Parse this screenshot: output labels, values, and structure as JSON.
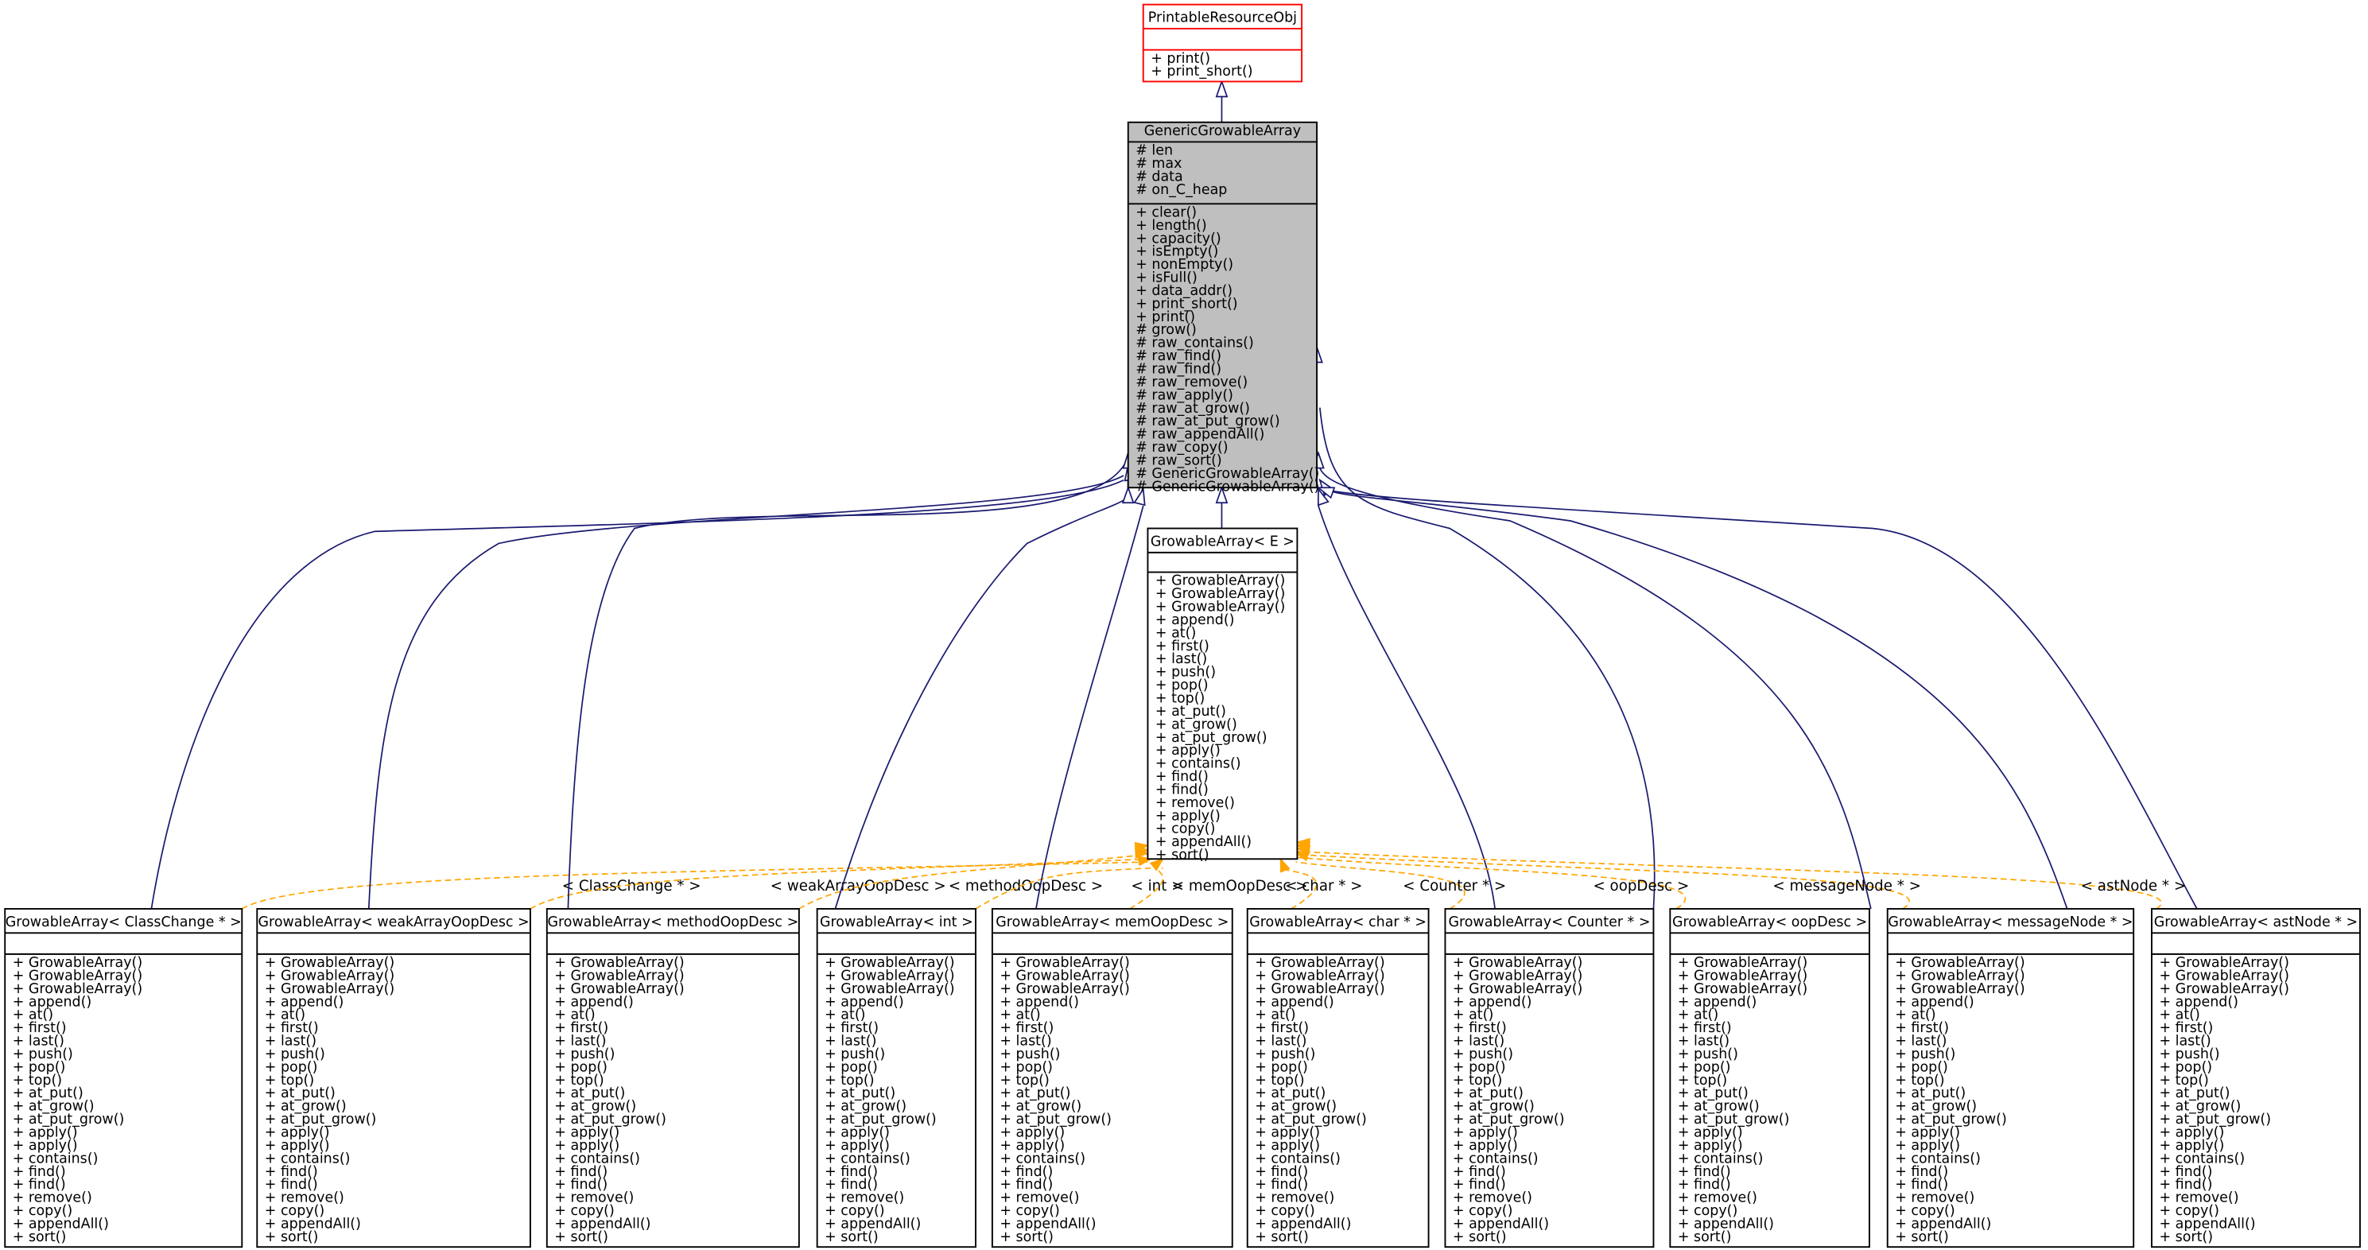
{
  "colors": {
    "inheritance_edge": "#191970",
    "template_edge": "#FFA500",
    "root_border": "#FF0000",
    "focus_fill": "#BFBFBF",
    "box_border": "#000000"
  },
  "classes": {
    "printable": {
      "title": "PrintableResourceObj",
      "attributes": [],
      "methods": [
        "+ print()",
        "+ print_short()"
      ]
    },
    "generic": {
      "title": "GenericGrowableArray",
      "attributes": [
        "# len",
        "# max",
        "# data",
        "# on_C_heap"
      ],
      "methods": [
        "+ clear()",
        "+ length()",
        "+ capacity()",
        "+ isEmpty()",
        "+ nonEmpty()",
        "+ isFull()",
        "+ data_addr()",
        "+ print_short()",
        "+ print()",
        "# grow()",
        "# raw_contains()",
        "# raw_find()",
        "# raw_find()",
        "# raw_remove()",
        "# raw_apply()",
        "# raw_at_grow()",
        "# raw_at_put_grow()",
        "# raw_appendAll()",
        "# raw_copy()",
        "# raw_sort()",
        "# GenericGrowableArray()",
        "# GenericGrowableArray()"
      ]
    },
    "template": {
      "title": "GrowableArray< E >",
      "attributes": [],
      "methods": [
        "+ GrowableArray()",
        "+ GrowableArray()",
        "+ GrowableArray()",
        "+ append()",
        "+ at()",
        "+ first()",
        "+ last()",
        "+ push()",
        "+ pop()",
        "+ top()",
        "+ at_put()",
        "+ at_grow()",
        "+ at_put_grow()",
        "+ apply()",
        "+ contains()",
        "+ find()",
        "+ find()",
        "+ remove()",
        "+ apply()",
        "+ copy()",
        "+ appendAll()",
        "+ sort()"
      ]
    }
  },
  "instantiation_methods": [
    "+ GrowableArray()",
    "+ GrowableArray()",
    "+ GrowableArray()",
    "+ append()",
    "+ at()",
    "+ first()",
    "+ last()",
    "+ push()",
    "+ pop()",
    "+ top()",
    "+ at_put()",
    "+ at_grow()",
    "+ at_put_grow()",
    "+ apply()",
    "+ apply()",
    "+ contains()",
    "+ find()",
    "+ find()",
    "+ remove()",
    "+ copy()",
    "+ appendAll()",
    "+ sort()"
  ],
  "instantiations": [
    {
      "title": "GrowableArray< ClassChange * >",
      "edge_label": "< ClassChange * >"
    },
    {
      "title": "GrowableArray< weakArrayOopDesc >",
      "edge_label": "< weakArrayOopDesc >"
    },
    {
      "title": "GrowableArray< methodOopDesc >",
      "edge_label": "< methodOopDesc >"
    },
    {
      "title": "GrowableArray< int >",
      "edge_label": "< int >"
    },
    {
      "title": "GrowableArray< memOopDesc >",
      "edge_label": "< memOopDesc >"
    },
    {
      "title": "GrowableArray< char * >",
      "edge_label": "< char * >"
    },
    {
      "title": "GrowableArray< Counter * >",
      "edge_label": "< Counter * >"
    },
    {
      "title": "GrowableArray< oopDesc >",
      "edge_label": "< oopDesc >"
    },
    {
      "title": "GrowableArray< messageNode * >",
      "edge_label": "< messageNode * >"
    },
    {
      "title": "GrowableArray< astNode * >",
      "edge_label": "< astNode * >"
    }
  ]
}
